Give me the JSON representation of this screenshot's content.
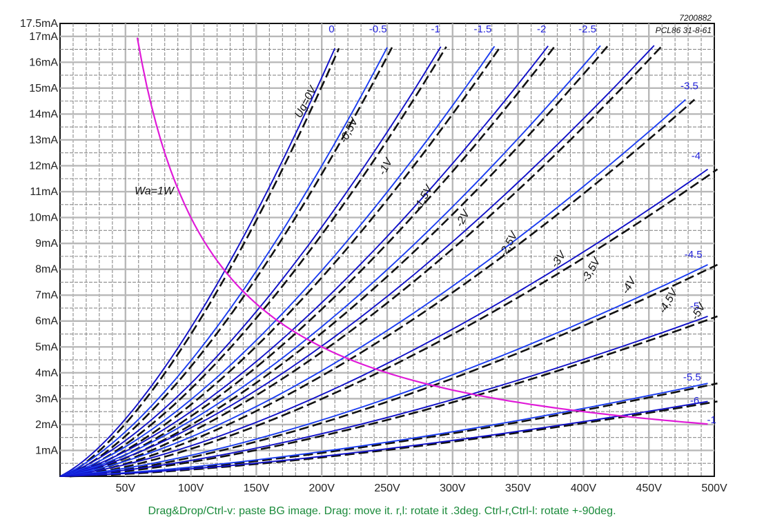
{
  "chart_data": {
    "type": "line",
    "title": "",
    "xlabel": "",
    "ylabel": "",
    "xlim": [
      0,
      500
    ],
    "ylim": [
      0,
      17.5
    ],
    "grid": true,
    "x_ticks": [
      {
        "value": 50,
        "label": "50V"
      },
      {
        "value": 100,
        "label": "100V"
      },
      {
        "value": 150,
        "label": "150V"
      },
      {
        "value": 200,
        "label": "200V"
      },
      {
        "value": 250,
        "label": "250V"
      },
      {
        "value": 300,
        "label": "300V"
      },
      {
        "value": 350,
        "label": "350V"
      },
      {
        "value": 400,
        "label": "400V"
      },
      {
        "value": 450,
        "label": "450V"
      },
      {
        "value": 500,
        "label": "500V"
      }
    ],
    "y_ticks": [
      {
        "value": 1,
        "label": "1mA"
      },
      {
        "value": 2,
        "label": "2mA"
      },
      {
        "value": 3,
        "label": "3mA"
      },
      {
        "value": 4,
        "label": "4mA"
      },
      {
        "value": 5,
        "label": "5mA"
      },
      {
        "value": 6,
        "label": "6mA"
      },
      {
        "value": 7,
        "label": "7mA"
      },
      {
        "value": 8,
        "label": "8mA"
      },
      {
        "value": 9,
        "label": "9mA"
      },
      {
        "value": 10,
        "label": "10mA"
      },
      {
        "value": 11,
        "label": "11mA"
      },
      {
        "value": 12,
        "label": "12mA"
      },
      {
        "value": 13,
        "label": "13mA"
      },
      {
        "value": 14,
        "label": "14mA"
      },
      {
        "value": 15,
        "label": "15mA"
      },
      {
        "value": 16,
        "label": "16mA"
      },
      {
        "value": 17,
        "label": "17mA"
      },
      {
        "value": 17.5,
        "label": "17.5mA"
      }
    ],
    "series": [
      {
        "name": "0",
        "end_x": 210,
        "end_y": 16.7,
        "exp": 1.5
      },
      {
        "name": "-0.5",
        "end_x": 250,
        "end_y": 16.7,
        "exp": 1.5
      },
      {
        "name": "-1",
        "end_x": 291,
        "end_y": 16.7,
        "exp": 1.5
      },
      {
        "name": "-1.5",
        "end_x": 332,
        "end_y": 16.7,
        "exp": 1.5
      },
      {
        "name": "-2",
        "end_x": 373,
        "end_y": 16.7,
        "exp": 1.5
      },
      {
        "name": "-2.5",
        "end_x": 413,
        "end_y": 16.7,
        "exp": 1.5
      },
      {
        "name": "-3",
        "end_x": 454,
        "end_y": 16.7,
        "exp": 1.5
      },
      {
        "name": "-3.5",
        "end_x": 478,
        "end_y": 14.6,
        "exp": 1.5
      },
      {
        "name": "-4",
        "end_x": 495,
        "end_y": 11.9,
        "exp": 1.5
      },
      {
        "name": "-4.5",
        "end_x": 495,
        "end_y": 8.2,
        "exp": 1.5
      },
      {
        "name": "-5",
        "end_x": 495,
        "end_y": 6.2,
        "exp": 1.5
      },
      {
        "name": "-5.5",
        "end_x": 495,
        "end_y": 3.6,
        "exp": 1.5
      },
      {
        "name": "-6",
        "end_x": 495,
        "end_y": 2.9,
        "exp": 1.5
      }
    ],
    "series_labels": [
      {
        "text": "0",
        "x": 207.5,
        "y": 17.15
      },
      {
        "text": "-0.5",
        "x": 243,
        "y": 17.15
      },
      {
        "text": "-1",
        "x": 287,
        "y": 17.15
      },
      {
        "text": "-1.5",
        "x": 323,
        "y": 17.15
      },
      {
        "text": "-2",
        "x": 368,
        "y": 17.15
      },
      {
        "text": "-2.5",
        "x": 403,
        "y": 17.15
      },
      {
        "text": "-3.5",
        "x": 481,
        "y": 14.95
      },
      {
        "text": "-4",
        "x": 486,
        "y": 12.25
      },
      {
        "text": "-4.5",
        "x": 484,
        "y": 8.45
      },
      {
        "text": "-5",
        "x": 485,
        "y": 6.45
      },
      {
        "text": "-5.5",
        "x": 483,
        "y": 3.7
      },
      {
        "text": "-6",
        "x": 485,
        "y": 2.8
      },
      {
        "text": "-1",
        "x": 498,
        "y": 2.05
      }
    ],
    "hand_labels": [
      {
        "text": "Ug=0V",
        "x": 190,
        "y": 14.4,
        "rotate": -62
      },
      {
        "text": "-0,5V",
        "x": 223,
        "y": 13.3,
        "rotate": -62
      },
      {
        "text": "-1V",
        "x": 251,
        "y": 11.9,
        "rotate": -62
      },
      {
        "text": "-1,5V",
        "x": 280,
        "y": 10.7,
        "rotate": -62
      },
      {
        "text": "-2V",
        "x": 310,
        "y": 9.9,
        "rotate": -62
      },
      {
        "text": "-2,5V",
        "x": 345,
        "y": 8.9,
        "rotate": -62
      },
      {
        "text": "-3V",
        "x": 383,
        "y": 8.3,
        "rotate": -55
      },
      {
        "text": "-3,5V",
        "x": 408,
        "y": 7.9,
        "rotate": -60
      },
      {
        "text": "-4V",
        "x": 437,
        "y": 7.3,
        "rotate": -60
      },
      {
        "text": "-4,5V",
        "x": 467,
        "y": 6.7,
        "rotate": -60
      },
      {
        "text": "-5V",
        "x": 490,
        "y": 6.3,
        "rotate": -60
      },
      {
        "text": "Wa=1W",
        "x": 72,
        "y": 10.9,
        "rotate": 0
      }
    ],
    "power_curve": {
      "watts": 1,
      "x_start": 59,
      "x_end": 495
    },
    "corner_text": [
      "7200882",
      "PCL86 31-8-61"
    ]
  },
  "instructions": "Drag&Drop/Ctrl-v: paste BG image. Drag: move it. r,l: rotate it .3deg. Ctrl-r,Ctrl-l: rotate +-90deg."
}
